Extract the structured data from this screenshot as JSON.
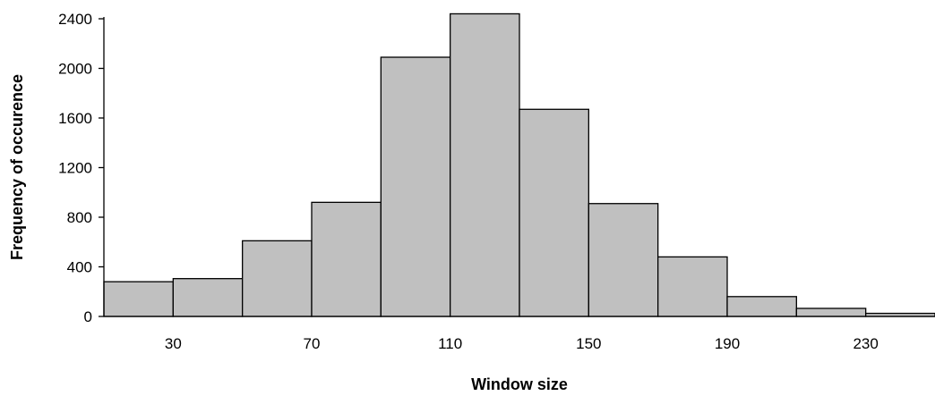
{
  "chart_data": {
    "type": "bar",
    "title": "",
    "xlabel": "Window size",
    "ylabel": "Frequency of occurence",
    "x_tick_labels": [
      "30",
      "70",
      "110",
      "150",
      "190",
      "230"
    ],
    "y_tick_labels": [
      "0",
      "400",
      "800",
      "1200",
      "1600",
      "2000",
      "2400"
    ],
    "bins": [
      {
        "start": 10,
        "end": 30,
        "value": 280
      },
      {
        "start": 30,
        "end": 50,
        "value": 305
      },
      {
        "start": 50,
        "end": 70,
        "value": 610
      },
      {
        "start": 70,
        "end": 90,
        "value": 920
      },
      {
        "start": 90,
        "end": 110,
        "value": 2090
      },
      {
        "start": 110,
        "end": 130,
        "value": 2440
      },
      {
        "start": 130,
        "end": 150,
        "value": 1670
      },
      {
        "start": 150,
        "end": 170,
        "value": 910
      },
      {
        "start": 170,
        "end": 190,
        "value": 480
      },
      {
        "start": 190,
        "end": 210,
        "value": 160
      },
      {
        "start": 210,
        "end": 230,
        "value": 65
      },
      {
        "start": 230,
        "end": 250,
        "value": 25
      }
    ],
    "xlim": [
      10,
      250
    ],
    "ylim": [
      0,
      2400
    ],
    "x_ticks": [
      30,
      70,
      110,
      150,
      190,
      230
    ],
    "y_ticks": [
      0,
      400,
      800,
      1200,
      1600,
      2000,
      2400
    ],
    "bar_color": "#c0c0c0",
    "edge_color": "#000000",
    "grid": false,
    "legend": false
  }
}
